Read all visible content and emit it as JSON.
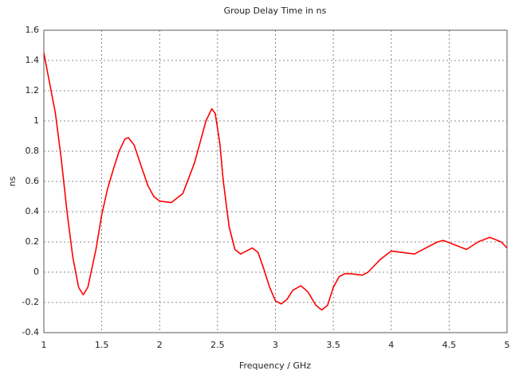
{
  "chart_data": {
    "type": "line",
    "title": "Group Delay Time in ns",
    "xlabel": "Frequency / GHz",
    "ylabel": "ns",
    "x": [
      1,
      1.05,
      1.1,
      1.15,
      1.2,
      1.25,
      1.3,
      1.34,
      1.38,
      1.45,
      1.5,
      1.55,
      1.6,
      1.65,
      1.7,
      1.73,
      1.78,
      1.85,
      1.9,
      1.95,
      2.0,
      2.1,
      2.2,
      2.3,
      2.4,
      2.45,
      2.48,
      2.52,
      2.55,
      2.6,
      2.65,
      2.7,
      2.75,
      2.8,
      2.85,
      2.9,
      2.95,
      3.0,
      3.05,
      3.1,
      3.15,
      3.22,
      3.28,
      3.35,
      3.4,
      3.45,
      3.5,
      3.55,
      3.6,
      3.65,
      3.75,
      3.8,
      3.9,
      4.0,
      4.1,
      4.2,
      4.3,
      4.4,
      4.45,
      4.55,
      4.65,
      4.75,
      4.85,
      4.95,
      5.0
    ],
    "series": [
      {
        "name": "Group Delay",
        "color": "#ff0000",
        "values": [
          1.45,
          1.25,
          1.05,
          0.75,
          0.4,
          0.1,
          -0.1,
          -0.15,
          -0.1,
          0.15,
          0.38,
          0.55,
          0.68,
          0.8,
          0.88,
          0.89,
          0.84,
          0.68,
          0.57,
          0.5,
          0.47,
          0.46,
          0.52,
          0.72,
          1.0,
          1.08,
          1.05,
          0.85,
          0.6,
          0.3,
          0.15,
          0.12,
          0.14,
          0.16,
          0.13,
          0.02,
          -0.1,
          -0.19,
          -0.21,
          -0.18,
          -0.12,
          -0.09,
          -0.13,
          -0.22,
          -0.25,
          -0.22,
          -0.1,
          -0.03,
          -0.01,
          -0.01,
          -0.02,
          0.0,
          0.08,
          0.14,
          0.13,
          0.12,
          0.16,
          0.2,
          0.21,
          0.18,
          0.15,
          0.2,
          0.23,
          0.2,
          0.16
        ]
      }
    ],
    "xlim": [
      1,
      5
    ],
    "xticks": [
      1,
      1.5,
      2,
      2.5,
      3,
      3.5,
      4,
      4.5,
      5
    ],
    "ylim": [
      -0.4,
      1.6
    ],
    "yticks": [
      -0.4,
      -0.2,
      0,
      0.2,
      0.4,
      0.6,
      0.8,
      1,
      1.2,
      1.4,
      1.6
    ],
    "grid": true
  }
}
